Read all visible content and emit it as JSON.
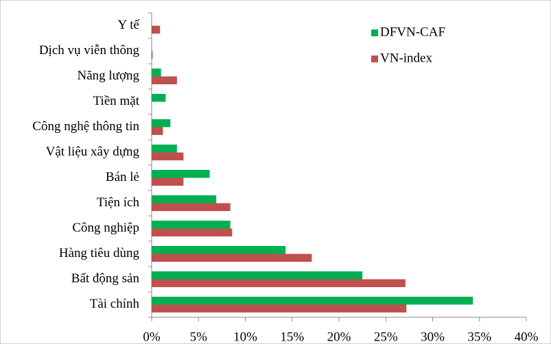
{
  "chart_data": {
    "type": "hbar",
    "categories": [
      "Y tế",
      "Dịch vụ viễn thông",
      "Năng lượng",
      "Tiền mặt",
      "Công nghệ thông tin",
      "Vật liệu xây dựng",
      "Bán lẻ",
      "Tiện ích",
      "Công nghiệp",
      "Hàng tiêu dùng",
      "Bất động sản",
      "Tài chính"
    ],
    "series": [
      {
        "name": "DFVN-CAF",
        "color": "#00b050",
        "values": [
          0,
          0,
          1.0,
          1.5,
          2.0,
          2.7,
          6.2,
          6.9,
          8.4,
          14.3,
          22.5,
          34.3
        ]
      },
      {
        "name": "VN-index",
        "color": "#c0504d",
        "values": [
          0.9,
          0.1,
          2.7,
          0,
          1.2,
          3.4,
          3.4,
          8.4,
          8.6,
          17.1,
          27.1,
          27.2
        ]
      }
    ],
    "xlim": [
      0,
      40
    ],
    "xticks": [
      {
        "value": 0,
        "label": "0%"
      },
      {
        "value": 5,
        "label": "5%"
      },
      {
        "value": 10,
        "label": "10%"
      },
      {
        "value": 15,
        "label": "15%"
      },
      {
        "value": 20,
        "label": "20%"
      },
      {
        "value": 25,
        "label": "25%"
      },
      {
        "value": 30,
        "label": "30%"
      },
      {
        "value": 35,
        "label": "35%"
      },
      {
        "value": 40,
        "label": "40%"
      }
    ],
    "legend": "top-right"
  }
}
